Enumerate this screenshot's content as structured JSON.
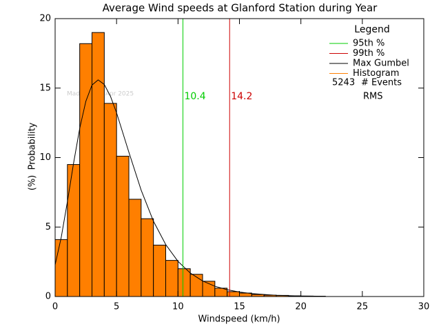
{
  "chart_data": {
    "type": "histogram",
    "title": "Average Wind speeds at Glanford Station during Year",
    "x_label": "Windspeed (km/h)",
    "y_label": "Probability",
    "y_label_unit": "(%)",
    "watermark": "Made on 25 Apr 2025",
    "series_name": "Histogram",
    "color": "#ff7f00",
    "bins": [
      0,
      1,
      2,
      3,
      4,
      5,
      6,
      7,
      8,
      9,
      10,
      11,
      12,
      13,
      14,
      15,
      16,
      17,
      18,
      19,
      20,
      21,
      22
    ],
    "values": [
      4.1,
      9.5,
      18.2,
      19.0,
      13.9,
      10.1,
      7.0,
      5.6,
      3.7,
      2.6,
      2.0,
      1.6,
      1.1,
      0.6,
      0.35,
      0.25,
      0.15,
      0.1,
      0.08,
      0.05,
      0.03,
      0.02
    ],
    "curve": {
      "name": "Max Gumbel",
      "color": "#000000",
      "x": [
        0,
        0.5,
        1,
        1.5,
        2,
        2.5,
        3,
        3.5,
        4,
        4.5,
        5,
        6,
        7,
        8,
        9,
        10,
        11,
        12,
        13,
        14,
        15,
        16,
        18,
        20,
        22
      ],
      "values": [
        2.28,
        4.27,
        6.83,
        9.59,
        12.1,
        14.05,
        15.22,
        15.59,
        15.26,
        14.42,
        13.22,
        10.39,
        7.66,
        5.42,
        3.74,
        2.53,
        1.69,
        1.12,
        0.74,
        0.49,
        0.32,
        0.21,
        0.09,
        0.04,
        0.02
      ]
    },
    "percentiles": [
      {
        "name": "95th %",
        "value": 10.4,
        "color": "#00cc00"
      },
      {
        "name": "99th %",
        "value": 14.2,
        "color": "#cc0000"
      }
    ],
    "legend": {
      "title": "Legend"
    },
    "events": {
      "count": 5243,
      "label": "# Events"
    },
    "rms_label": "RMS",
    "xlim": [
      0,
      30
    ],
    "ylim": [
      0,
      20
    ],
    "xticks": [
      0,
      5,
      10,
      15,
      20,
      25,
      30
    ],
    "yticks": [
      0,
      5,
      10,
      15,
      20
    ]
  }
}
